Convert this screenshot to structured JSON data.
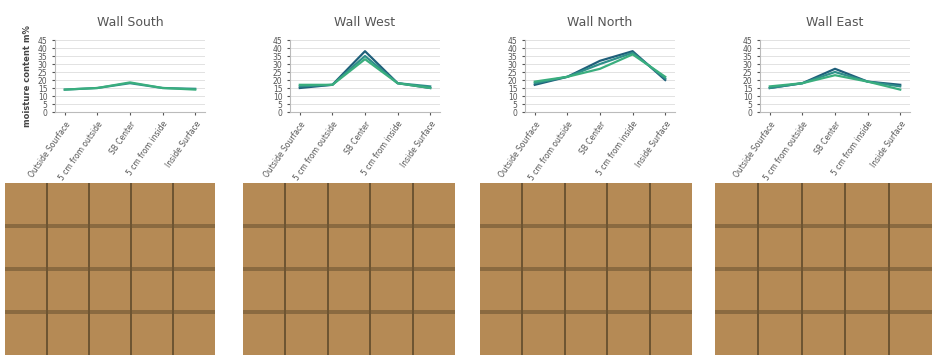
{
  "chart_data": [
    {
      "type": "line",
      "title": "Wall South",
      "y_label": "moisture content m%",
      "categories": [
        "Outside Sourface",
        "5 cm from outside",
        "SB Center",
        "5 cm from inside",
        "Inside Surface"
      ],
      "ylim": [
        0,
        45
      ],
      "yticks": [
        0,
        5,
        10,
        15,
        20,
        25,
        30,
        35,
        40,
        45
      ],
      "grid": true,
      "series": [
        {
          "color": "#2f8f8a",
          "values": [
            14,
            15,
            18,
            15,
            14.5
          ]
        },
        {
          "color": "#3aae7e",
          "values": [
            14,
            15,
            18.5,
            15,
            14
          ]
        }
      ]
    },
    {
      "type": "line",
      "title": "Wall West",
      "categories": [
        "Outside Sourface",
        "5 cm from outside",
        "SB Center",
        "5 cm from inside",
        "Inside Surface"
      ],
      "ylim": [
        0,
        45
      ],
      "yticks": [
        0,
        5,
        10,
        15,
        20,
        25,
        30,
        35,
        40,
        45
      ],
      "grid": true,
      "series": [
        {
          "color": "#1f5f7a",
          "values": [
            15,
            17,
            38,
            18,
            15
          ]
        },
        {
          "color": "#2f8f8a",
          "values": [
            16,
            17,
            35,
            18,
            16
          ]
        },
        {
          "color": "#3aae7e",
          "values": [
            17,
            17,
            33,
            18,
            15
          ]
        }
      ]
    },
    {
      "type": "line",
      "title": "Wall North",
      "categories": [
        "Outside Sourface",
        "5 cm from outside",
        "SB Center",
        "5 cm from inside",
        "Inside Surface"
      ],
      "ylim": [
        0,
        45
      ],
      "yticks": [
        0,
        5,
        10,
        15,
        20,
        25,
        30,
        35,
        40,
        45
      ],
      "grid": true,
      "series": [
        {
          "color": "#1f5f7a",
          "values": [
            17,
            22,
            32,
            38,
            20
          ]
        },
        {
          "color": "#2f8f8a",
          "values": [
            18,
            22,
            30,
            37,
            21
          ]
        },
        {
          "color": "#3aae7e",
          "values": [
            19,
            22,
            27,
            36,
            22
          ]
        }
      ]
    },
    {
      "type": "line",
      "title": "Wall East",
      "categories": [
        "Outside Sourface",
        "5 cm from outside",
        "SB Center",
        "5 cm from inside",
        "Inside Surface"
      ],
      "ylim": [
        0,
        45
      ],
      "yticks": [
        0,
        5,
        10,
        15,
        20,
        25,
        30,
        35,
        40,
        45
      ],
      "grid": true,
      "series": [
        {
          "color": "#1f5f7a",
          "values": [
            15,
            18,
            27,
            19,
            17
          ]
        },
        {
          "color": "#2f8f8a",
          "values": [
            15,
            18,
            25,
            19,
            16
          ]
        },
        {
          "color": "#3aae7e",
          "values": [
            16,
            18,
            23,
            19,
            14
          ]
        }
      ]
    }
  ]
}
